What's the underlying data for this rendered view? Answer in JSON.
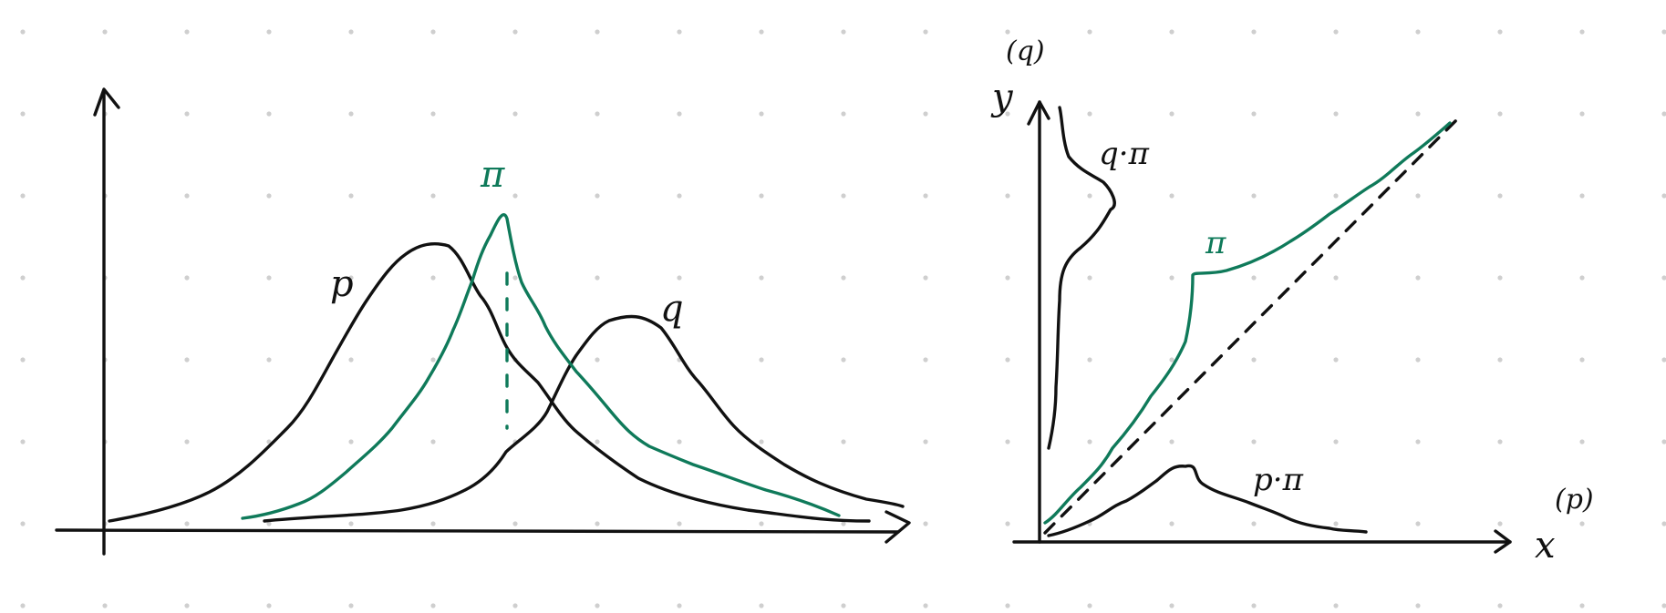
{
  "colors": {
    "ink": "#111111",
    "accent": "#0f7a5a",
    "grid_dot": "#cfcfcf"
  },
  "left_panel": {
    "labels": {
      "p": "p",
      "q": "q",
      "pi": "π"
    }
  },
  "right_panel": {
    "labels": {
      "y_axis": "y",
      "y_axis_sup": "(q)",
      "x_axis": "x",
      "x_axis_sup": "(p)",
      "q_pi": "q·π",
      "p_pi": "p·π",
      "pi": "π"
    }
  }
}
